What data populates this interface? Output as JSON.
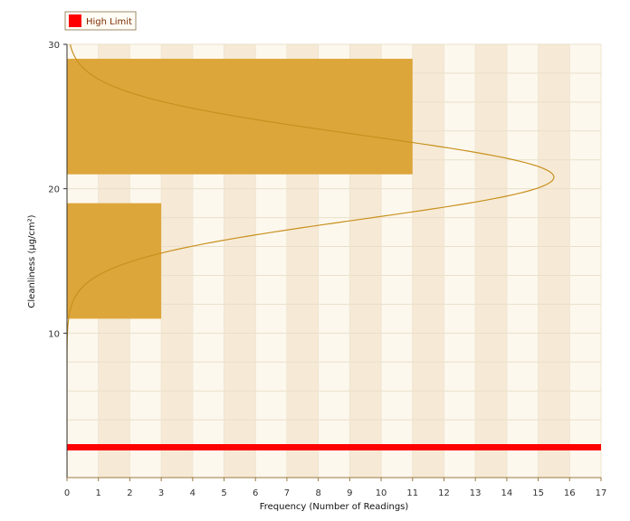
{
  "chart_data": {
    "type": "bar",
    "orientation": "horizontal",
    "legend": {
      "position": "top-left",
      "entries": [
        {
          "label": "High Limit",
          "color": "#ff0000"
        }
      ]
    },
    "xlabel": "Frequency (Number of Readings)",
    "ylabel": "Cleanliness (µg/cm²)",
    "xlim": [
      0,
      17
    ],
    "ylim": [
      0,
      30
    ],
    "x_ticks": [
      "0",
      "1",
      "2",
      "3",
      "4",
      "5",
      "6",
      "7",
      "8",
      "9",
      "10",
      "11",
      "12",
      "13",
      "14",
      "15",
      "16",
      "17"
    ],
    "y_ticks": [
      "10",
      "20",
      "30"
    ],
    "grid": true,
    "bins": [
      {
        "from": 11,
        "to": 19,
        "count": 3
      },
      {
        "from": 21,
        "to": 29,
        "count": 11
      }
    ],
    "bar_color": "#dda63b",
    "distribution_curve": {
      "color": "#c8901e",
      "mean": 20.8,
      "sd": 2.9,
      "peak": 15.5
    },
    "high_limit": 2.1,
    "high_limit_color": "#ff0000"
  }
}
